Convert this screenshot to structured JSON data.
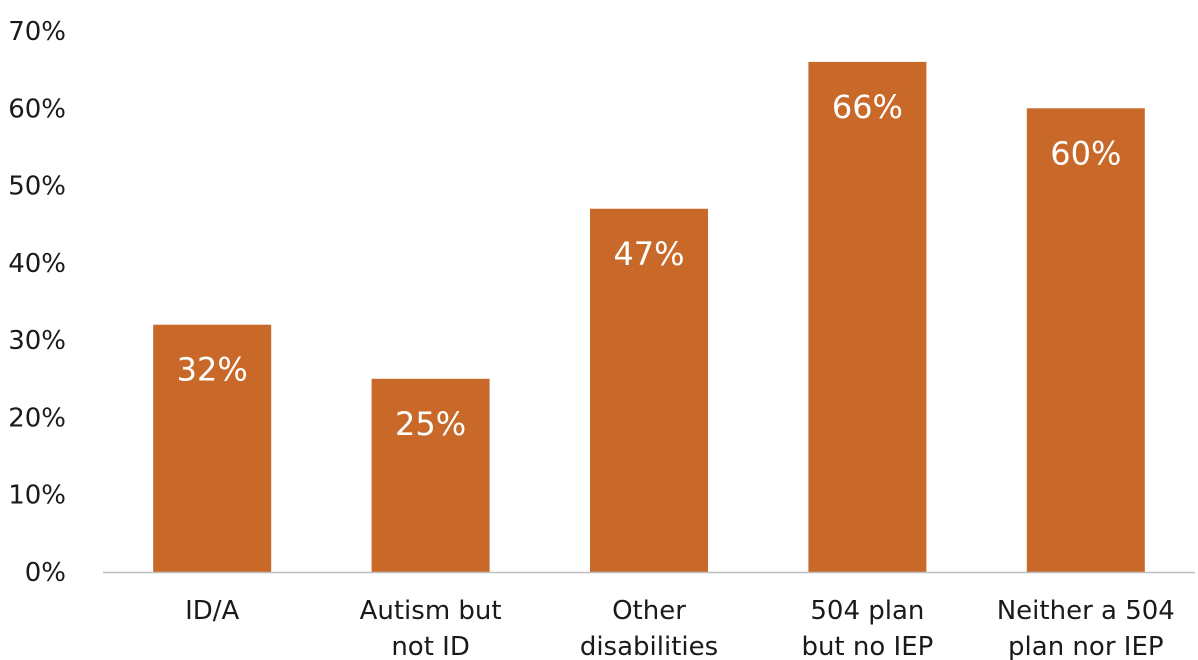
{
  "chart_data": {
    "type": "bar",
    "categories": [
      [
        "ID/A"
      ],
      [
        "Autism but",
        "not ID"
      ],
      [
        "Other",
        "disabilities"
      ],
      [
        "504 plan",
        "but no IEP"
      ],
      [
        "Neither a 504",
        "plan nor IEP"
      ]
    ],
    "values": [
      32,
      25,
      47,
      66,
      60
    ],
    "data_labels": [
      "32%",
      "25%",
      "47%",
      "66%",
      "60%"
    ],
    "ylim": [
      0,
      70
    ],
    "y_ticks": [
      0,
      10,
      20,
      30,
      40,
      50,
      60,
      70
    ],
    "y_tick_labels": [
      "0%",
      "10%",
      "20%",
      "30%",
      "40%",
      "50%",
      "60%",
      "70%"
    ],
    "title": "",
    "xlabel": "",
    "ylabel": "",
    "grid": false,
    "legend": "none",
    "colors": {
      "bar": "#C8692A",
      "axis": "#BFBFBF",
      "text": "#1a1a1a",
      "data_label": "#ffffff"
    }
  }
}
